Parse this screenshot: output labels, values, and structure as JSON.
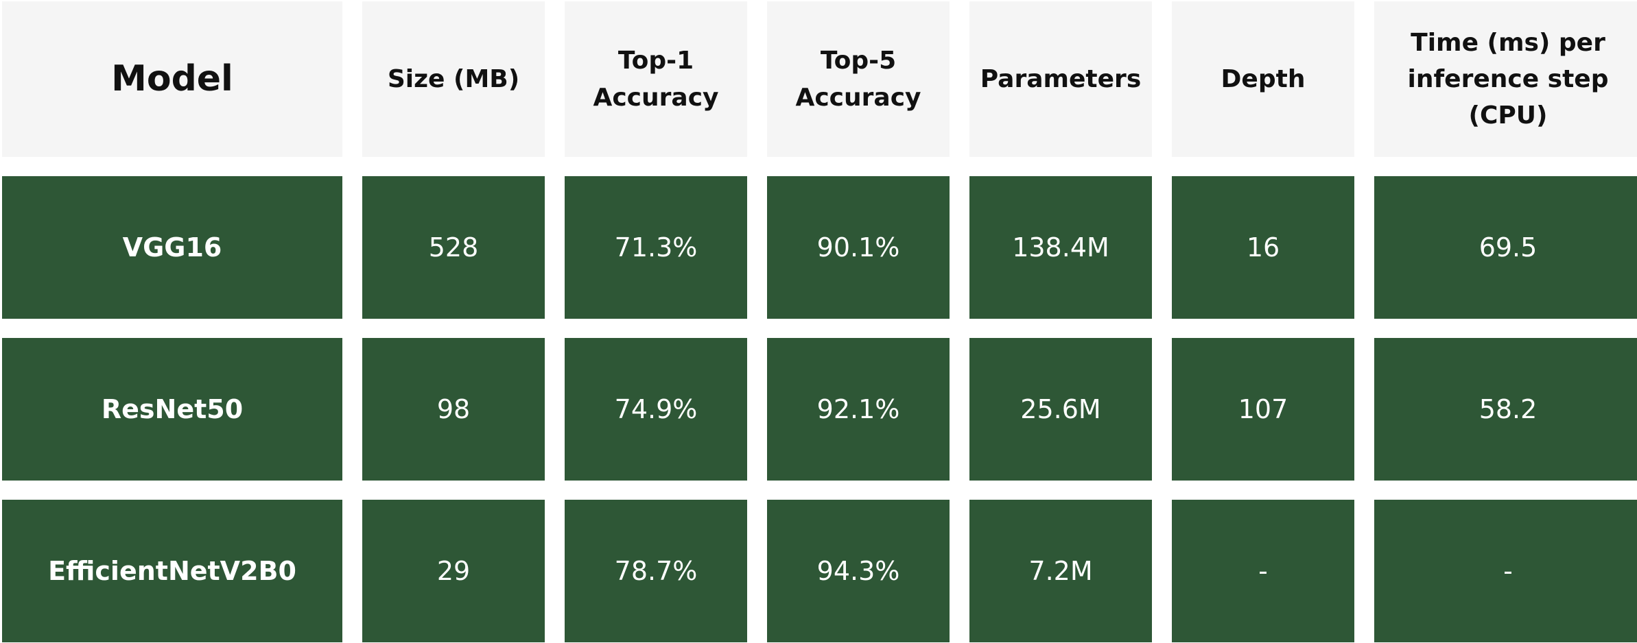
{
  "colors": {
    "header_bg": "#f5f5f5",
    "row_bg": "#2e5736",
    "row_text": "#ffffff",
    "header_text": "#111111"
  },
  "table": {
    "headers": [
      "Model",
      "Size (MB)",
      "Top-1 Accuracy",
      "Top-5 Accuracy",
      "Parameters",
      "Depth",
      "Time (ms) per inference step (CPU)"
    ],
    "rows": [
      [
        "VGG16",
        "528",
        "71.3%",
        "90.1%",
        "138.4M",
        "16",
        "69.5"
      ],
      [
        "ResNet50",
        "98",
        "74.9%",
        "92.1%",
        "25.6M",
        "107",
        "58.2"
      ],
      [
        "EfficientNetV2B0",
        "29",
        "78.7%",
        "94.3%",
        "7.2M",
        "-",
        "-"
      ]
    ]
  }
}
